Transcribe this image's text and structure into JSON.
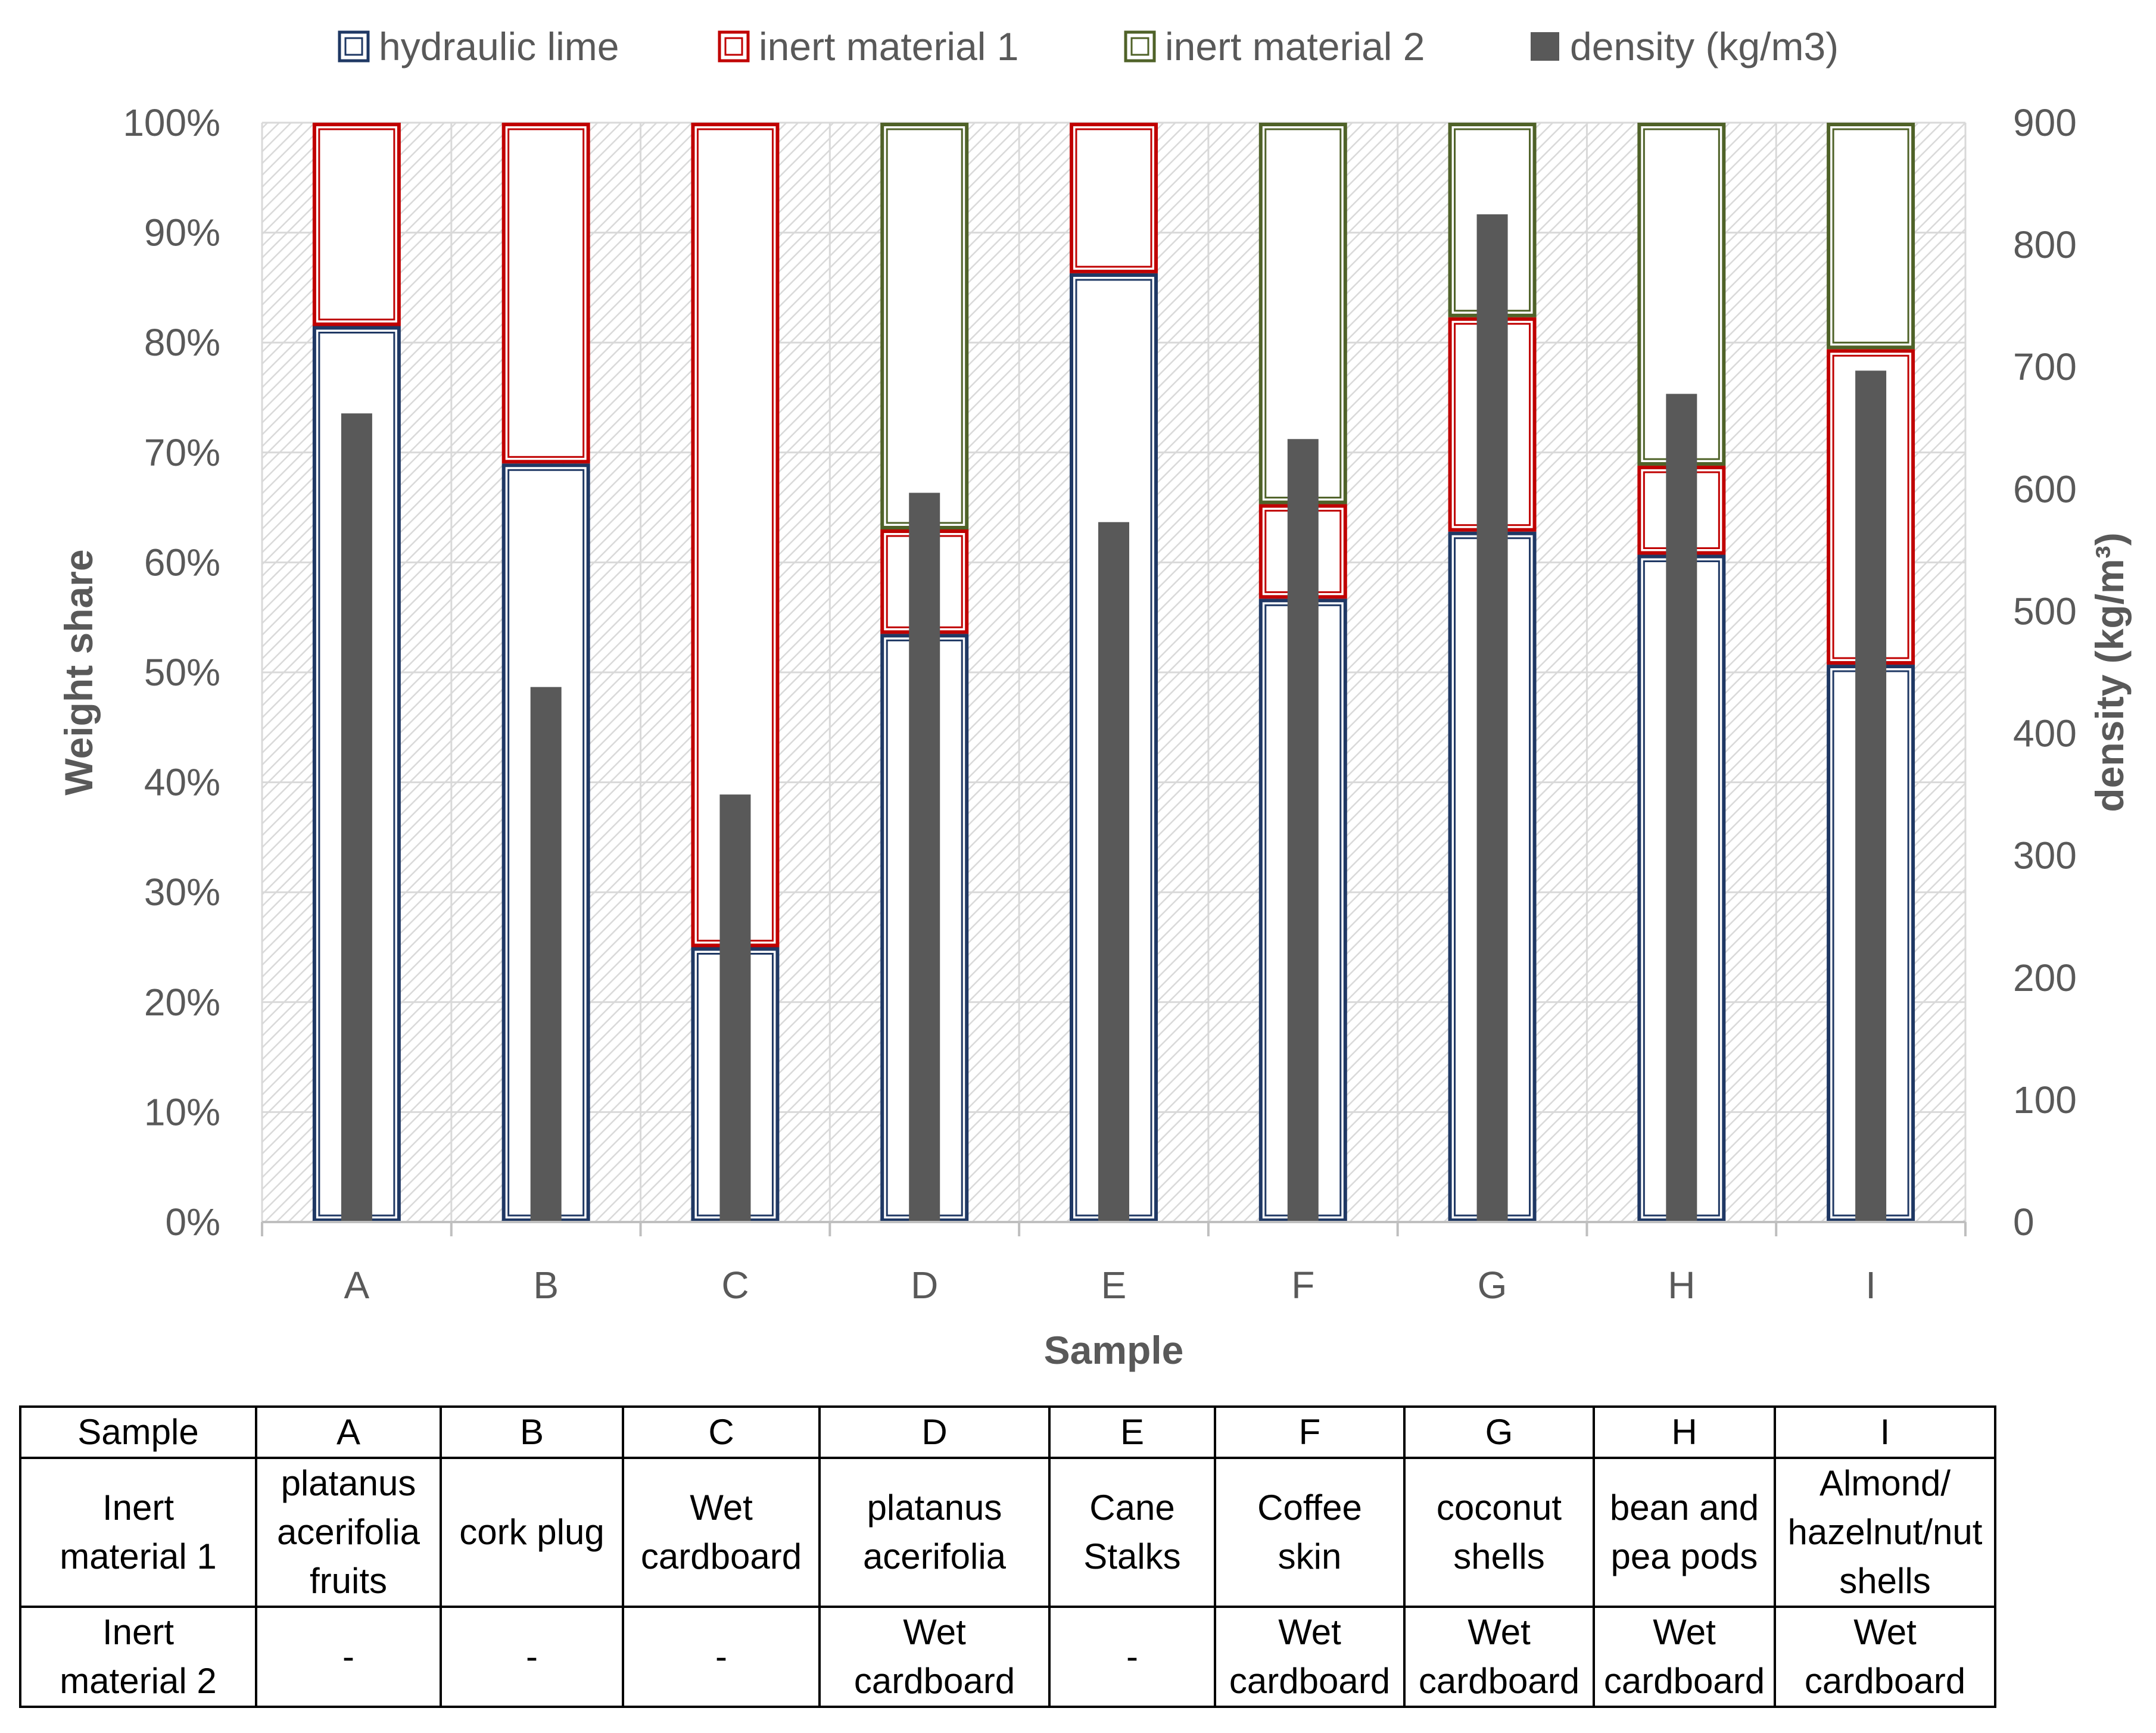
{
  "chart_data": {
    "type": "bar",
    "subtype": "stacked percent bars with secondary-axis density bars",
    "categories": [
      "A",
      "B",
      "C",
      "D",
      "E",
      "F",
      "G",
      "H",
      "I"
    ],
    "series": [
      {
        "name": "hydraulic lime",
        "axis": "left",
        "color": "#1f3864",
        "values": [
          0.815,
          0.69,
          0.25,
          0.535,
          0.863,
          0.567,
          0.628,
          0.607,
          0.507
        ]
      },
      {
        "name": "inert material 1",
        "axis": "left",
        "color": "#c00000",
        "values": [
          0.185,
          0.31,
          0.75,
          0.095,
          0.137,
          0.086,
          0.195,
          0.081,
          0.287
        ]
      },
      {
        "name": "inert material 2",
        "axis": "left",
        "color": "#4f6228",
        "values": [
          0,
          0,
          0,
          0.37,
          0,
          0.347,
          0.177,
          0.312,
          0.206
        ]
      },
      {
        "name": "density (kg/m3)",
        "axis": "right",
        "color": "#595959",
        "values": [
          662,
          438,
          350,
          597,
          573,
          641,
          825,
          678,
          697
        ]
      }
    ],
    "xlabel": "Sample",
    "ylabel": "Weight  share",
    "y2label": "density (kg/m³)",
    "ylim": [
      0,
      1
    ],
    "y2lim": [
      0,
      900
    ],
    "yticks": [
      "0%",
      "10%",
      "20%",
      "30%",
      "40%",
      "50%",
      "60%",
      "70%",
      "80%",
      "90%",
      "100%"
    ],
    "y2ticks": [
      "0",
      "100",
      "200",
      "300",
      "400",
      "500",
      "600",
      "700",
      "800",
      "900"
    ],
    "grid": true,
    "legend_position": "top"
  },
  "table": {
    "header": [
      "Sample",
      "A",
      "B",
      "C",
      "D",
      "E",
      "F",
      "G",
      "H",
      "I"
    ],
    "rows": [
      [
        "Inert\nmaterial 1",
        "platanus\nacerifolia\nfruits",
        "cork plug",
        "Wet\ncardboard",
        "platanus\nacerifolia",
        "Cane\nStalks",
        "Coffee\nskin",
        "coconut\nshells",
        "bean and\npea pods",
        "Almond/\nhazelnut/nut\nshells"
      ],
      [
        "Inert\nmaterial 2",
        "-",
        "-",
        "-",
        "Wet\ncardboard",
        "-",
        "Wet\ncardboard",
        "Wet\ncardboard",
        "Wet\ncardboard",
        "Wet\ncardboard"
      ]
    ]
  }
}
